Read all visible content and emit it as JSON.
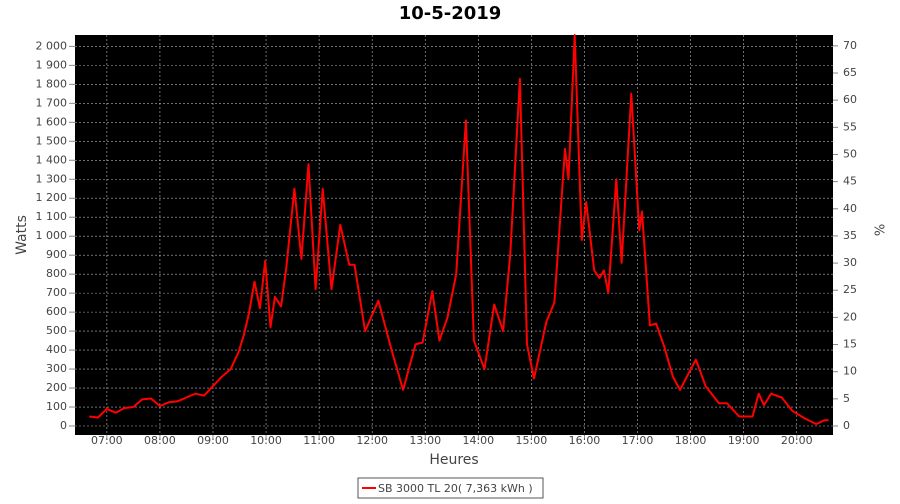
{
  "chart_data": {
    "type": "line",
    "title": "10-5-2019",
    "x_label": "Heures",
    "y_label": "Watts",
    "y2_label": "%",
    "x": [
      "06:40",
      "06:50",
      "07:00",
      "07:10",
      "07:20",
      "07:30",
      "07:40",
      "07:50",
      "08:00",
      "08:10",
      "08:20",
      "08:30",
      "08:40",
      "08:50",
      "09:00",
      "09:10",
      "09:20",
      "09:29",
      "09:35",
      "09:41",
      "09:47",
      "09:53",
      "09:59",
      "10:05",
      "10:10",
      "10:17",
      "10:23",
      "10:32",
      "10:40",
      "10:48",
      "10:56",
      "11:04",
      "11:14",
      "11:24",
      "11:34",
      "11:40",
      "11:52",
      "12:07",
      "12:22",
      "12:35",
      "12:49",
      "12:57",
      "13:08",
      "13:16",
      "13:25",
      "13:35",
      "13:46",
      "13:55",
      "14:07",
      "14:18",
      "14:28",
      "14:36",
      "14:47",
      "14:55",
      "15:03",
      "15:17",
      "15:26",
      "15:38",
      "15:42",
      "15:49",
      "15:57",
      "16:02",
      "16:11",
      "16:17",
      "16:22",
      "16:27",
      "16:36",
      "16:42",
      "16:53",
      "17:02",
      "17:05",
      "17:14",
      "17:21",
      "17:30",
      "17:40",
      "17:48",
      "17:58",
      "18:06",
      "18:17",
      "18:32",
      "18:41",
      "18:55",
      "19:10",
      "19:17",
      "19:23",
      "19:31",
      "19:43",
      "19:55",
      "20:09",
      "20:22",
      "20:31",
      "20:36"
    ],
    "series": [
      {
        "name": "SB 3000 TL 20( 7,363 kWh )",
        "color": "#ff0000",
        "values": [
          50,
          45,
          90,
          70,
          95,
          100,
          140,
          145,
          105,
          125,
          130,
          150,
          170,
          160,
          210,
          260,
          300,
          390,
          480,
          600,
          760,
          620,
          870,
          520,
          680,
          630,
          840,
          1250,
          880,
          1380,
          720,
          1250,
          720,
          1060,
          850,
          850,
          500,
          660,
          400,
          190,
          430,
          440,
          710,
          450,
          570,
          800,
          1610,
          450,
          300,
          640,
          500,
          900,
          1830,
          430,
          250,
          550,
          650,
          1460,
          1300,
          2060,
          980,
          1180,
          820,
          780,
          820,
          700,
          1300,
          860,
          1750,
          1030,
          1130,
          530,
          540,
          420,
          260,
          190,
          280,
          350,
          210,
          120,
          120,
          50,
          50,
          170,
          110,
          170,
          150,
          80,
          40,
          10,
          30,
          30
        ]
      }
    ],
    "xlim": [
      "06:24",
      "20:41"
    ],
    "xticks": [
      "07:00",
      "08:00",
      "09:00",
      "10:00",
      "11:00",
      "12:00",
      "13:00",
      "14:00",
      "15:00",
      "16:00",
      "17:00",
      "18:00",
      "19:00",
      "20:00"
    ],
    "ylim": [
      0,
      2060
    ],
    "yticks": [
      0,
      100,
      200,
      300,
      400,
      500,
      600,
      700,
      800,
      900,
      {
        "value": 1000,
        "label": "1 000"
      },
      {
        "value": 1100,
        "label": "1 100"
      },
      {
        "value": 1200,
        "label": "1 200"
      },
      {
        "value": 1300,
        "label": "1 300"
      },
      {
        "value": 1400,
        "label": "1 400"
      },
      {
        "value": 1500,
        "label": "1 500"
      },
      {
        "value": 1600,
        "label": "1 600"
      },
      {
        "value": 1700,
        "label": "1 700"
      },
      {
        "value": 1800,
        "label": "1 800"
      },
      {
        "value": 1900,
        "label": "1 900"
      },
      {
        "value": 2000,
        "label": "2 000"
      }
    ],
    "y2lim": [
      0,
      72
    ],
    "y2ticks": [
      0,
      5,
      10,
      15,
      20,
      25,
      30,
      35,
      40,
      45,
      50,
      55,
      60,
      65,
      70
    ],
    "grid": true
  }
}
